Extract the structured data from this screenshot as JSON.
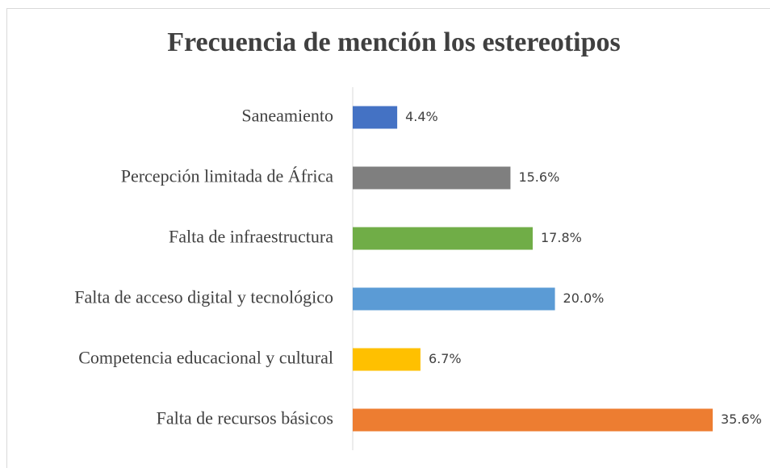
{
  "chart_data": {
    "type": "bar",
    "orientation": "horizontal",
    "title": "Frecuencia de mención los estereotipos",
    "categories": [
      "Saneamiento",
      "Percepción limitada de África",
      "Falta de infraestructura",
      "Falta de acceso digital y tecnológico",
      "Competencia educacional y cultural",
      "Falta de recursos básicos"
    ],
    "values": [
      4.4,
      15.6,
      17.8,
      20.0,
      6.7,
      35.6
    ],
    "value_labels": [
      "4.4%",
      "15.6%",
      "17.8%",
      "20.0%",
      "6.7%",
      "35.6%"
    ],
    "colors": [
      "#4472c4",
      "#7f7f7f",
      "#70ad47",
      "#5b9bd5",
      "#ffc000",
      "#ed7d31"
    ]
  }
}
